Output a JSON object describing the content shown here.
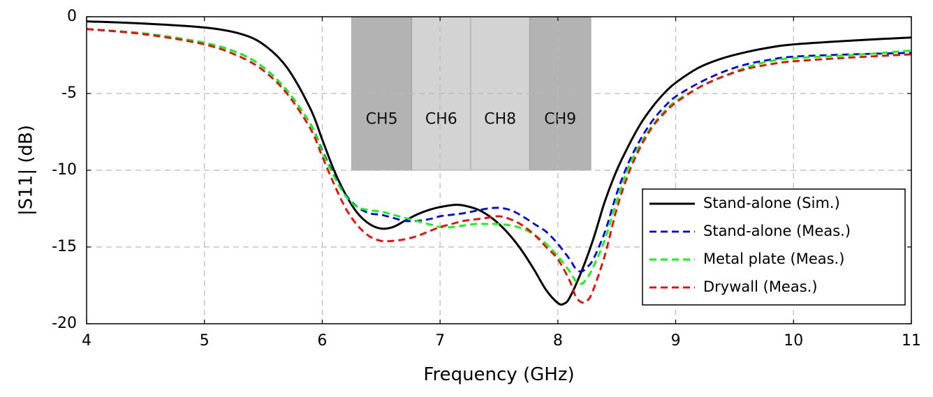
{
  "chart_data": {
    "type": "line",
    "xlabel": "Frequency (GHz)",
    "ylabel": "|S11| (dB)",
    "xlim": [
      4,
      11
    ],
    "ylim": [
      -20,
      0
    ],
    "x_ticks": [
      4,
      5,
      6,
      7,
      8,
      9,
      10,
      11
    ],
    "y_ticks": [
      0,
      -5,
      -10,
      -15,
      -20
    ],
    "grid": true,
    "legend_position": "bottom-right",
    "bands": [
      {
        "label": "CH5",
        "x_start": 6.25,
        "x_end": 6.76,
        "y_bottom": -10,
        "y_top": 0,
        "color": "#b3b3b3"
      },
      {
        "label": "CH6",
        "x_start": 6.76,
        "x_end": 7.26,
        "y_bottom": -10,
        "y_top": 0,
        "color": "#d3d3d3"
      },
      {
        "label": "CH8",
        "x_start": 7.26,
        "x_end": 7.76,
        "y_bottom": -10,
        "y_top": 0,
        "color": "#d3d3d3"
      },
      {
        "label": "CH9",
        "x_start": 7.76,
        "x_end": 8.28,
        "y_bottom": -10,
        "y_top": 0,
        "color": "#b3b3b3"
      }
    ],
    "series": [
      {
        "name": "Stand-alone (Sim.)",
        "color": "#000000",
        "dash": "solid",
        "x": [
          4.0,
          4.5,
          5.0,
          5.3,
          5.5,
          5.7,
          5.9,
          6.0,
          6.1,
          6.2,
          6.3,
          6.4,
          6.5,
          6.6,
          6.7,
          6.8,
          6.9,
          7.0,
          7.15,
          7.3,
          7.4,
          7.5,
          7.6,
          7.7,
          7.8,
          7.9,
          8.0,
          8.05,
          8.1,
          8.2,
          8.3,
          8.4,
          8.5,
          8.6,
          8.7,
          8.8,
          8.9,
          9.0,
          9.2,
          9.4,
          9.6,
          9.8,
          10.0,
          10.5,
          11.0
        ],
        "y": [
          -0.3,
          -0.45,
          -0.7,
          -1.1,
          -1.8,
          -3.3,
          -6.0,
          -8.0,
          -10.0,
          -11.6,
          -12.8,
          -13.5,
          -13.8,
          -13.7,
          -13.3,
          -12.9,
          -12.6,
          -12.4,
          -12.25,
          -12.5,
          -12.9,
          -13.5,
          -14.3,
          -15.3,
          -16.5,
          -17.8,
          -18.65,
          -18.7,
          -18.3,
          -16.6,
          -14.5,
          -12.0,
          -10.0,
          -8.4,
          -7.0,
          -5.9,
          -5.0,
          -4.3,
          -3.3,
          -2.7,
          -2.3,
          -2.0,
          -1.8,
          -1.55,
          -1.35
        ]
      },
      {
        "name": "Stand-alone (Meas.)",
        "color": "#0000ff",
        "dash": "dashed",
        "x": [
          4.0,
          4.5,
          5.0,
          5.3,
          5.5,
          5.7,
          5.9,
          6.0,
          6.1,
          6.2,
          6.3,
          6.4,
          6.5,
          6.6,
          6.7,
          6.8,
          6.9,
          7.0,
          7.1,
          7.2,
          7.3,
          7.4,
          7.5,
          7.6,
          7.7,
          7.8,
          7.9,
          8.0,
          8.1,
          8.15,
          8.2,
          8.25,
          8.3,
          8.4,
          8.5,
          8.6,
          8.7,
          8.8,
          8.9,
          9.0,
          9.2,
          9.4,
          9.6,
          9.8,
          10.0,
          10.5,
          11.0
        ],
        "y": [
          -0.8,
          -1.1,
          -1.7,
          -2.4,
          -3.3,
          -4.8,
          -7.0,
          -8.7,
          -10.3,
          -11.6,
          -12.4,
          -12.8,
          -12.9,
          -13.1,
          -13.3,
          -13.3,
          -13.2,
          -13.0,
          -12.9,
          -12.8,
          -12.65,
          -12.5,
          -12.45,
          -12.6,
          -13.0,
          -13.5,
          -14.0,
          -14.8,
          -15.8,
          -16.4,
          -16.6,
          -16.3,
          -15.8,
          -14.0,
          -11.5,
          -9.5,
          -8.0,
          -6.8,
          -5.9,
          -5.2,
          -4.3,
          -3.6,
          -3.1,
          -2.8,
          -2.6,
          -2.45,
          -2.35
        ]
      },
      {
        "name": "Metal plate (Meas.)",
        "color": "#00ff00",
        "dash": "dashed",
        "x": [
          4.0,
          4.5,
          5.0,
          5.3,
          5.5,
          5.7,
          5.9,
          6.0,
          6.1,
          6.2,
          6.3,
          6.4,
          6.5,
          6.6,
          6.7,
          6.8,
          6.9,
          7.0,
          7.1,
          7.2,
          7.3,
          7.4,
          7.5,
          7.6,
          7.7,
          7.8,
          7.9,
          8.0,
          8.1,
          8.15,
          8.2,
          8.25,
          8.3,
          8.4,
          8.5,
          8.6,
          8.7,
          8.8,
          8.9,
          9.0,
          9.2,
          9.4,
          9.6,
          9.8,
          10.0,
          10.5,
          11.0
        ],
        "y": [
          -0.8,
          -1.1,
          -1.7,
          -2.4,
          -3.3,
          -4.8,
          -7.0,
          -8.8,
          -10.4,
          -11.7,
          -12.4,
          -12.6,
          -12.7,
          -12.9,
          -13.1,
          -13.3,
          -13.5,
          -13.7,
          -13.7,
          -13.6,
          -13.5,
          -13.5,
          -13.5,
          -13.6,
          -13.8,
          -14.2,
          -14.8,
          -15.6,
          -16.6,
          -17.2,
          -17.4,
          -17.0,
          -16.3,
          -14.5,
          -12.0,
          -9.8,
          -8.3,
          -7.1,
          -6.2,
          -5.5,
          -4.6,
          -3.9,
          -3.3,
          -2.9,
          -2.7,
          -2.5,
          -2.2
        ]
      },
      {
        "name": "Drywall (Meas.)",
        "color": "#ff0000",
        "dash": "dashed",
        "x": [
          4.0,
          4.5,
          5.0,
          5.3,
          5.5,
          5.7,
          5.9,
          6.0,
          6.1,
          6.2,
          6.3,
          6.4,
          6.5,
          6.6,
          6.7,
          6.8,
          6.9,
          7.0,
          7.1,
          7.2,
          7.3,
          7.4,
          7.5,
          7.6,
          7.7,
          7.8,
          7.9,
          8.0,
          8.1,
          8.15,
          8.2,
          8.25,
          8.3,
          8.4,
          8.5,
          8.6,
          8.7,
          8.8,
          8.9,
          9.0,
          9.2,
          9.4,
          9.6,
          9.8,
          10.0,
          10.5,
          11.0
        ],
        "y": [
          -0.8,
          -1.15,
          -1.8,
          -2.6,
          -3.5,
          -5.0,
          -7.3,
          -9.1,
          -10.9,
          -12.5,
          -13.6,
          -14.3,
          -14.6,
          -14.6,
          -14.5,
          -14.3,
          -14.0,
          -13.7,
          -13.5,
          -13.3,
          -13.2,
          -13.1,
          -13.0,
          -13.2,
          -13.6,
          -14.2,
          -15.0,
          -15.8,
          -17.2,
          -18.2,
          -18.6,
          -18.5,
          -17.8,
          -15.5,
          -12.5,
          -10.2,
          -8.5,
          -7.2,
          -6.3,
          -5.6,
          -4.6,
          -3.9,
          -3.4,
          -3.1,
          -2.9,
          -2.65,
          -2.45
        ]
      }
    ]
  }
}
